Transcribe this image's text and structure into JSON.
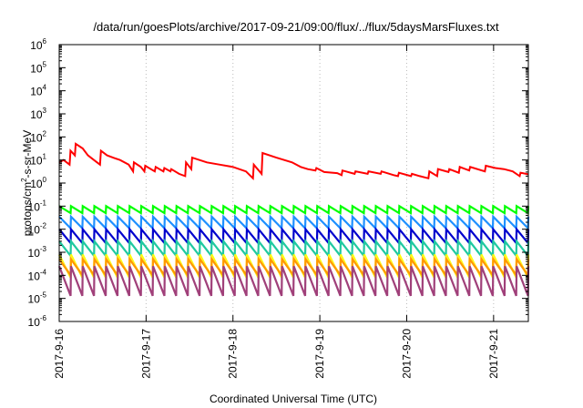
{
  "chart_data": {
    "type": "line",
    "title": "/data/run/goesPlots/archive/2017-09-21/09:00/flux/../flux/5daysMarsFluxes.txt",
    "xlabel": "Coordinated Universal Time (UTC)",
    "ylabel": "protons/cm²-s-sr-MeV",
    "ylabel_parts": {
      "pre": "protons/cm",
      "sup": "2",
      "post": "-s-sr-MeV"
    },
    "yscale": "log",
    "ylim_exponents": [
      -6,
      6
    ],
    "y_tick_base": "10",
    "y_tick_exponents": [
      "-6",
      "-5",
      "-4",
      "-3",
      "-2",
      "-1",
      "0",
      "1",
      "2",
      "3",
      "4",
      "5",
      "6"
    ],
    "x_tick_labels": [
      "2017-9-16",
      "2017-9-17",
      "2017-9-18",
      "2017-9-19",
      "2017-9-20",
      "2017-9-21"
    ],
    "xlim_days": [
      0,
      5.4
    ],
    "grid": "vertical-dotted",
    "series": [
      {
        "color": "#ff0000",
        "points": [
          [
            0.0,
            7.9
          ],
          [
            0.05,
            10.0
          ],
          [
            0.12,
            6.3
          ],
          [
            0.13,
            25.1
          ],
          [
            0.18,
            15.8
          ],
          [
            0.19,
            50.1
          ],
          [
            0.27,
            31.6
          ],
          [
            0.33,
            15.8
          ],
          [
            0.4,
            10.0
          ],
          [
            0.47,
            6.3
          ],
          [
            0.48,
            25.1
          ],
          [
            0.55,
            15.8
          ],
          [
            0.62,
            12.6
          ],
          [
            0.7,
            10.0
          ],
          [
            0.8,
            6.3
          ],
          [
            0.85,
            3.2
          ],
          [
            0.86,
            7.9
          ],
          [
            0.94,
            5.0
          ],
          [
            0.98,
            3.2
          ],
          [
            0.99,
            5.6
          ],
          [
            1.1,
            3.2
          ],
          [
            1.11,
            5.0
          ],
          [
            1.2,
            3.2
          ],
          [
            1.21,
            4.5
          ],
          [
            1.28,
            3.2
          ],
          [
            1.29,
            4.0
          ],
          [
            1.38,
            2.5
          ],
          [
            1.45,
            2.0
          ],
          [
            1.46,
            7.9
          ],
          [
            1.52,
            4.0
          ],
          [
            1.53,
            12.6
          ],
          [
            1.7,
            7.9
          ],
          [
            1.85,
            6.3
          ],
          [
            2.0,
            5.0
          ],
          [
            2.15,
            3.2
          ],
          [
            2.23,
            1.6
          ],
          [
            2.24,
            6.3
          ],
          [
            2.33,
            2.5
          ],
          [
            2.34,
            20.0
          ],
          [
            2.5,
            12.6
          ],
          [
            2.68,
            7.9
          ],
          [
            2.78,
            5.0
          ],
          [
            2.86,
            4.0
          ],
          [
            2.95,
            3.5
          ],
          [
            2.96,
            4.5
          ],
          [
            3.05,
            3.0
          ],
          [
            3.2,
            2.7
          ],
          [
            3.25,
            2.2
          ],
          [
            3.26,
            3.5
          ],
          [
            3.4,
            2.5
          ],
          [
            3.41,
            3.2
          ],
          [
            3.55,
            2.5
          ],
          [
            3.56,
            3.2
          ],
          [
            3.7,
            2.5
          ],
          [
            3.71,
            3.2
          ],
          [
            3.85,
            2.2
          ],
          [
            3.9,
            2.0
          ],
          [
            3.91,
            2.8
          ],
          [
            4.05,
            2.0
          ],
          [
            4.06,
            2.5
          ],
          [
            4.15,
            2.0
          ],
          [
            4.25,
            1.6
          ],
          [
            4.26,
            3.2
          ],
          [
            4.35,
            2.0
          ],
          [
            4.36,
            4.0
          ],
          [
            4.48,
            3.0
          ],
          [
            4.49,
            4.0
          ],
          [
            4.6,
            2.8
          ],
          [
            4.61,
            5.0
          ],
          [
            4.72,
            3.5
          ],
          [
            4.73,
            5.0
          ],
          [
            4.9,
            3.2
          ],
          [
            4.91,
            5.6
          ],
          [
            5.02,
            4.5
          ],
          [
            5.12,
            4.0
          ],
          [
            5.22,
            3.2
          ],
          [
            5.3,
            2.0
          ],
          [
            5.31,
            2.8
          ],
          [
            5.4,
            2.4
          ]
        ]
      },
      {
        "color": "#00ff00",
        "sawtooth": {
          "teeth": 40,
          "peak": 0.1,
          "trough": 0.05
        }
      },
      {
        "color": "#1e90ff",
        "sawtooth": {
          "teeth": 40,
          "peak": 0.035,
          "trough": 0.011
        }
      },
      {
        "color": "#0000cd",
        "sawtooth": {
          "teeth": 40,
          "peak": 0.01,
          "trough": 0.0025
        }
      },
      {
        "color": "#20c9a0",
        "sawtooth": {
          "teeth": 40,
          "peak": 0.003,
          "trough": 0.0007
        }
      },
      {
        "color": "#ffff00",
        "sawtooth": {
          "teeth": 40,
          "peak": 0.0008,
          "trough": 8e-05
        }
      },
      {
        "color": "#fff030",
        "sawtooth": {
          "teeth": 40,
          "peak": 0.0006,
          "trough": 0.0001
        }
      },
      {
        "color": "#ff9900",
        "sawtooth": {
          "teeth": 40,
          "peak": 0.0005,
          "trough": 0.0001
        }
      },
      {
        "color": "#a0407a",
        "sawtooth": {
          "teeth": 40,
          "peak": 0.00025,
          "trough": 1.3e-05
        }
      }
    ]
  }
}
